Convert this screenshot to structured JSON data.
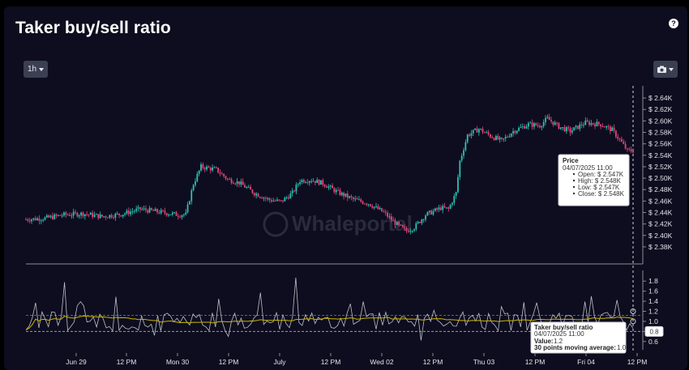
{
  "header": {
    "title": "Taker buy/sell ratio",
    "help_icon": "?",
    "interval_label": "1h",
    "camera_icon": "camera-icon"
  },
  "watermark": "Whaleportal",
  "colors": {
    "background": "#0d0d1f",
    "up_candle": "#2ec4b6",
    "down_candle": "#e8477a",
    "ratio_line": "#bfbfc7",
    "moving_average": "#c9b400",
    "grid": "#1c1c32"
  },
  "chart_data": [
    {
      "type": "candlestick",
      "title": "Price",
      "y_ticks": [
        "$ 2.64K",
        "$ 2.62K",
        "$ 2.60K",
        "$ 2.58K",
        "$ 2.56K",
        "$ 2.54K",
        "$ 2.52K",
        "$ 2.50K",
        "$ 2.48K",
        "$ 2.46K",
        "$ 2.44K",
        "$ 2.42K",
        "$ 2.40K",
        "$ 2.38K"
      ],
      "ylim": [
        2370,
        2650
      ],
      "close_path": [
        [
          0,
          2428
        ],
        [
          10,
          2430
        ],
        [
          20,
          2436
        ],
        [
          30,
          2438
        ],
        [
          40,
          2433
        ],
        [
          50,
          2437
        ],
        [
          60,
          2446
        ],
        [
          70,
          2441
        ],
        [
          80,
          2436
        ],
        [
          84,
          2437
        ],
        [
          88,
          2490
        ],
        [
          92,
          2520
        ],
        [
          100,
          2515
        ],
        [
          106,
          2498
        ],
        [
          112,
          2492
        ],
        [
          120,
          2474
        ],
        [
          128,
          2462
        ],
        [
          134,
          2459
        ],
        [
          140,
          2474
        ],
        [
          144,
          2496
        ],
        [
          150,
          2497
        ],
        [
          156,
          2491
        ],
        [
          164,
          2475
        ],
        [
          172,
          2463
        ],
        [
          180,
          2456
        ],
        [
          188,
          2440
        ],
        [
          196,
          2416
        ],
        [
          200,
          2408
        ],
        [
          204,
          2414
        ],
        [
          210,
          2436
        ],
        [
          218,
          2448
        ],
        [
          222,
          2446
        ],
        [
          226,
          2474
        ],
        [
          228,
          2530
        ],
        [
          232,
          2575
        ],
        [
          238,
          2586
        ],
        [
          244,
          2574
        ],
        [
          250,
          2565
        ],
        [
          256,
          2582
        ],
        [
          264,
          2594
        ],
        [
          270,
          2592
        ],
        [
          274,
          2604
        ],
        [
          280,
          2590
        ],
        [
          286,
          2582
        ],
        [
          294,
          2597
        ],
        [
          302,
          2594
        ],
        [
          308,
          2584
        ],
        [
          312,
          2567
        ],
        [
          316,
          2548
        ],
        [
          319,
          2548
        ]
      ],
      "tooltip": {
        "title": "Price",
        "date": "04/07/2025 11:00",
        "lines": [
          "Open: $ 2.547K",
          "High: $ 2.548K",
          "Low: $ 2.547K",
          "Close: $ 2.548K"
        ]
      }
    },
    {
      "type": "line",
      "title": "Taker buy/sell ratio",
      "y_ticks": [
        "1.8",
        "1.6",
        "1.4",
        "1.2",
        "1.0",
        "0.8",
        "0.6"
      ],
      "ylim": [
        0.5,
        1.9
      ],
      "reference_lines": [
        1.12,
        0.8
      ],
      "reference_label": "0.8",
      "x_ticks": [
        "Jun 29",
        "12 PM",
        "Mon 30",
        "12 PM",
        "July",
        "12 PM",
        "Wed 02",
        "12 PM",
        "Thu 03",
        "12 PM",
        "Fri 04",
        "12 PM"
      ],
      "series": [
        {
          "name": "Taker buy/sell ratio"
        },
        {
          "name": "30 points moving average"
        }
      ],
      "tooltip": {
        "title": "Taker buy/sell ratio",
        "date": "04/07/2025 11:00",
        "value_label": "Value:",
        "value": "1.2",
        "ma_label": "30 points moving average:",
        "ma_value": "1.0"
      }
    }
  ]
}
